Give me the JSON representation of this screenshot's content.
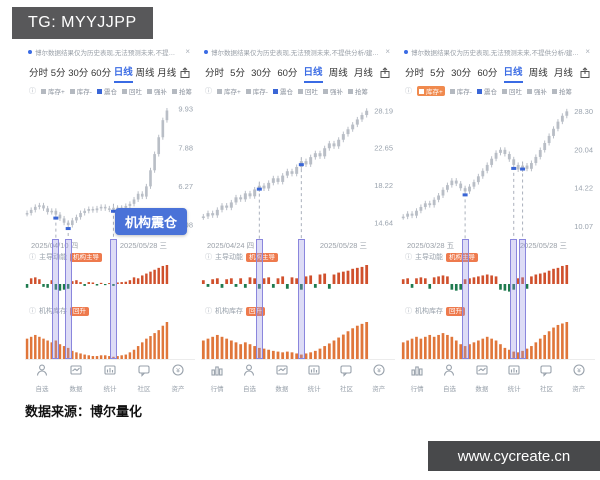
{
  "watermark_top": "TG: MYYJJPP",
  "watermark_bottom": "www.cycreate.cn",
  "caption": "数据来源：博尔量化",
  "common": {
    "notice": "博尔数据结果仅为历史表现,无法预测未来,不提供分析/建议。",
    "close_label": "×",
    "tabs": [
      "分时",
      "5分",
      "30分",
      "60分",
      "日线",
      "周线",
      "月线"
    ],
    "active_tab": "日线",
    "legend": [
      {
        "label": "库存+",
        "color": "#b4b9c0"
      },
      {
        "label": "库存-",
        "color": "#b4b9c0"
      },
      {
        "label": "震仓",
        "color": "#3a66d6"
      },
      {
        "label": "回吐",
        "color": "#b4b9c0"
      },
      {
        "label": "强补",
        "color": "#b4b9c0"
      },
      {
        "label": "抢筹",
        "color": "#b4b9c0"
      }
    ],
    "panel1_label": "主导动能",
    "panel2_label": "机构库存",
    "colors": {
      "accent_blue": "#3a6be4",
      "callout_blue": "#4a72d8",
      "badge_orange": "#ee7a4d",
      "bar_red": "#d0502c",
      "bar_green": "#1e7a4e",
      "bar_orange": "#e0763a",
      "candle_gray": "#b9bec6",
      "signal_purple": "#8a86dd"
    }
  },
  "charts": [
    {
      "callout": "机构震仓",
      "legend_highlight_index": -1,
      "panel1_badge": "机构主导",
      "panel2_badge": "回升",
      "nav": [
        {
          "icon": "person-icon",
          "label": "自选"
        },
        {
          "icon": "monitor-icon",
          "label": "数据"
        },
        {
          "icon": "stats-icon",
          "label": "统计"
        },
        {
          "icon": "chat-icon",
          "label": "社区"
        },
        {
          "icon": "coin-icon",
          "label": "资产"
        }
      ]
    },
    {
      "callout": "",
      "legend_highlight_index": -1,
      "panel1_badge": "机构主导",
      "panel2_badge": "回升",
      "nav": [
        {
          "icon": "bars-icon",
          "label": "行情"
        },
        {
          "icon": "person-icon",
          "label": "自选"
        },
        {
          "icon": "monitor-icon",
          "label": "数据"
        },
        {
          "icon": "stats-icon",
          "label": "统计"
        },
        {
          "icon": "chat-icon",
          "label": "社区"
        },
        {
          "icon": "coin-icon",
          "label": "资产"
        }
      ]
    },
    {
      "callout": "",
      "legend_highlight_index": 0,
      "panel1_badge": "机构主导",
      "panel2_badge": "回升",
      "nav": [
        {
          "icon": "bars-icon",
          "label": "行情"
        },
        {
          "icon": "person-icon",
          "label": "自选"
        },
        {
          "icon": "monitor-icon",
          "label": "数据"
        },
        {
          "icon": "stats-icon",
          "label": "统计"
        },
        {
          "icon": "chat-icon",
          "label": "社区"
        },
        {
          "icon": "coin-icon",
          "label": "资产"
        }
      ]
    }
  ],
  "chart_data": [
    {
      "type": "candlestick",
      "x_range": [
        "2025/04/10 四",
        "2025/05/28 三"
      ],
      "axis_labels": [
        "9.93",
        "7.88",
        "6.27",
        "4.98"
      ],
      "ylim": [
        4.75,
        10.3
      ],
      "closes": [
        5.35,
        5.45,
        5.55,
        5.6,
        5.5,
        5.38,
        5.42,
        5.3,
        5.18,
        5.05,
        4.98,
        5.12,
        5.22,
        5.35,
        5.42,
        5.48,
        5.44,
        5.5,
        5.55,
        5.5,
        5.46,
        5.52,
        5.48,
        5.52,
        5.58,
        5.65,
        5.8,
        6.0,
        5.9,
        6.27,
        6.9,
        7.6,
        8.4,
        9.3,
        9.85
      ],
      "signal_indices": [
        7,
        10,
        21
      ],
      "momentum_values": [
        -0.2,
        0.3,
        0.35,
        0.25,
        -0.15,
        -0.2,
        0.2,
        -0.3,
        -0.35,
        -0.3,
        -0.25,
        0.15,
        0.2,
        0.1,
        -0.1,
        0.1,
        0.08,
        -0.08,
        0.06,
        -0.06,
        0.05,
        -0.1,
        0.08,
        0.1,
        0.12,
        0.2,
        0.35,
        0.3,
        0.45,
        0.55,
        0.65,
        0.75,
        0.85,
        0.95,
        1.0
      ],
      "inventory_values": [
        0.55,
        0.6,
        0.65,
        0.6,
        0.55,
        0.5,
        0.45,
        0.5,
        0.4,
        0.35,
        0.3,
        0.22,
        0.18,
        0.15,
        0.12,
        0.1,
        0.08,
        0.08,
        0.1,
        0.1,
        0.08,
        0.06,
        0.08,
        0.1,
        0.12,
        0.18,
        0.25,
        0.35,
        0.45,
        0.55,
        0.62,
        0.7,
        0.78,
        0.9,
        1.0
      ]
    },
    {
      "type": "candlestick",
      "x_range": [
        "2025/04/24 四",
        "2025/05/28 三"
      ],
      "axis_labels": [
        "28.19",
        "22.65",
        "18.22",
        "14.64"
      ],
      "ylim": [
        13.8,
        29.5
      ],
      "closes": [
        15.2,
        15.5,
        15.3,
        15.8,
        16.2,
        16.0,
        16.5,
        17.0,
        16.8,
        17.4,
        17.1,
        17.8,
        18.2,
        17.9,
        18.5,
        19.0,
        18.6,
        19.3,
        19.8,
        19.5,
        20.3,
        21.0,
        20.6,
        21.5,
        22.0,
        21.6,
        22.65,
        23.3,
        22.9,
        23.8,
        24.6,
        25.3,
        26.0,
        26.8,
        27.5,
        28.19
      ],
      "signal_indices": [
        12,
        21
      ],
      "momentum_values": [
        0.2,
        -0.15,
        0.25,
        0.3,
        -0.2,
        0.25,
        0.3,
        -0.15,
        0.3,
        -0.2,
        0.35,
        0.3,
        -0.25,
        0.3,
        0.35,
        -0.2,
        0.3,
        0.4,
        -0.25,
        0.35,
        0.3,
        -0.3,
        0.4,
        0.45,
        -0.2,
        0.5,
        0.55,
        -0.25,
        0.5,
        0.6,
        0.65,
        0.7,
        0.8,
        0.85,
        0.9,
        1.0
      ],
      "inventory_values": [
        0.5,
        0.55,
        0.6,
        0.65,
        0.6,
        0.55,
        0.5,
        0.45,
        0.4,
        0.45,
        0.4,
        0.35,
        0.3,
        0.28,
        0.25,
        0.22,
        0.2,
        0.18,
        0.2,
        0.18,
        0.15,
        0.12,
        0.15,
        0.18,
        0.22,
        0.28,
        0.35,
        0.42,
        0.5,
        0.58,
        0.66,
        0.75,
        0.83,
        0.9,
        0.95,
        1.0
      ]
    },
    {
      "type": "candlestick",
      "x_range": [
        "2025/03/28 五",
        "2025/05/28 三"
      ],
      "axis_labels": [
        "28.30",
        "20.04",
        "14.22",
        "10.07"
      ],
      "ylim": [
        9.5,
        30.5
      ],
      "closes": [
        11.0,
        11.3,
        11.1,
        11.6,
        12.0,
        12.4,
        12.2,
        12.8,
        13.3,
        14.0,
        14.6,
        15.2,
        14.8,
        14.2,
        13.8,
        14.4,
        15.0,
        15.8,
        16.6,
        17.5,
        18.5,
        19.5,
        20.04,
        19.3,
        18.4,
        17.5,
        16.8,
        17.4,
        16.9,
        17.8,
        18.8,
        20.0,
        21.3,
        22.7,
        24.2,
        25.8,
        27.2,
        28.3
      ],
      "signal_indices": [
        14,
        25,
        27
      ],
      "momentum_values": [
        0.25,
        0.3,
        -0.2,
        0.3,
        0.35,
        0.3,
        -0.25,
        0.35,
        0.4,
        0.45,
        0.4,
        -0.3,
        -0.35,
        -0.3,
        0.25,
        0.3,
        0.35,
        0.4,
        0.45,
        0.5,
        0.45,
        0.4,
        -0.3,
        -0.35,
        -0.4,
        -0.3,
        0.3,
        0.35,
        -0.25,
        0.4,
        0.5,
        0.55,
        0.6,
        0.7,
        0.8,
        0.85,
        0.95,
        1.0
      ],
      "inventory_values": [
        0.45,
        0.5,
        0.55,
        0.6,
        0.55,
        0.6,
        0.65,
        0.6,
        0.65,
        0.7,
        0.65,
        0.6,
        0.5,
        0.4,
        0.35,
        0.4,
        0.45,
        0.5,
        0.55,
        0.6,
        0.55,
        0.5,
        0.4,
        0.3,
        0.25,
        0.2,
        0.18,
        0.22,
        0.28,
        0.35,
        0.45,
        0.55,
        0.65,
        0.75,
        0.85,
        0.92,
        0.96,
        1.0
      ]
    }
  ]
}
